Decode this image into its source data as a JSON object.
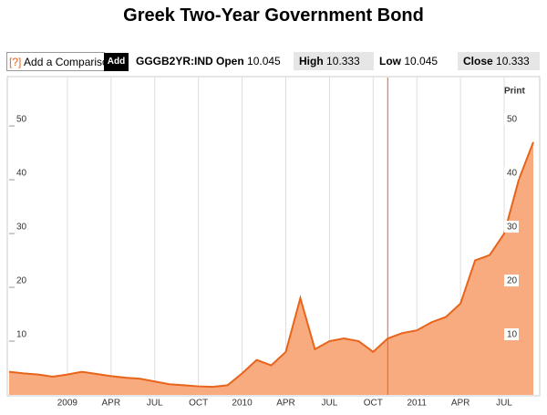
{
  "page_title": "Greek Two-Year Government Bond",
  "toolbar": {
    "help": "[?]",
    "comparison_placeholder": "Add a Comparison",
    "add_button": "Add",
    "ticker": "GGGB2YR:IND",
    "open_label": "Open",
    "open": "10.045",
    "high_label": "High",
    "high": "10.333",
    "low_label": "Low",
    "low": "10.045",
    "close_label": "Close",
    "close": "10.333"
  },
  "print_label": "Print",
  "chart_data": {
    "type": "area",
    "x": [
      "2008-09",
      "2008-10",
      "2008-11",
      "2008-12",
      "2009-01",
      "2009-02",
      "2009-03",
      "2009-04",
      "2009-05",
      "2009-06",
      "2009-07",
      "2009-08",
      "2009-09",
      "2009-10",
      "2009-11",
      "2009-12",
      "2010-01",
      "2010-02",
      "2010-03",
      "2010-04",
      "2010-05",
      "2010-06",
      "2010-07",
      "2010-08",
      "2010-09",
      "2010-10",
      "2010-11",
      "2010-12",
      "2011-01",
      "2011-02",
      "2011-03",
      "2011-04",
      "2011-05",
      "2011-06",
      "2011-07",
      "2011-08",
      "2011-09"
    ],
    "values": [
      4.3,
      4.0,
      3.8,
      3.4,
      3.8,
      4.3,
      3.9,
      3.5,
      3.2,
      3.0,
      2.5,
      2.0,
      1.8,
      1.6,
      1.5,
      1.8,
      4.0,
      6.5,
      5.5,
      8.0,
      18.0,
      8.5,
      10.0,
      10.5,
      10.0,
      8.0,
      10.5,
      11.5,
      12.0,
      13.5,
      14.5,
      17.0,
      25.0,
      26.0,
      30.0,
      40.0,
      47.0
    ],
    "line_color": "#e8641b",
    "fill_color": "#f9ab80",
    "xlim": [
      "2008-09",
      "2011-09"
    ],
    "xticks": [
      {
        "value": "2009-01",
        "label": "2009"
      },
      {
        "value": "2009-04",
        "label": "APR"
      },
      {
        "value": "2009-07",
        "label": "JUL"
      },
      {
        "value": "2009-10",
        "label": "OCT"
      },
      {
        "value": "2010-01",
        "label": "2010"
      },
      {
        "value": "2010-04",
        "label": "APR"
      },
      {
        "value": "2010-07",
        "label": "JUL"
      },
      {
        "value": "2010-10",
        "label": "OCT"
      },
      {
        "value": "2011-01",
        "label": "2011"
      },
      {
        "value": "2011-04",
        "label": "APR"
      },
      {
        "value": "2011-07",
        "label": "JUL"
      }
    ],
    "ylim": [
      0,
      59
    ],
    "yticks": [
      10,
      20,
      30,
      40,
      50
    ],
    "crosshair_x": "2010-11",
    "crosshair_color": "#e8641b",
    "grid": true
  }
}
